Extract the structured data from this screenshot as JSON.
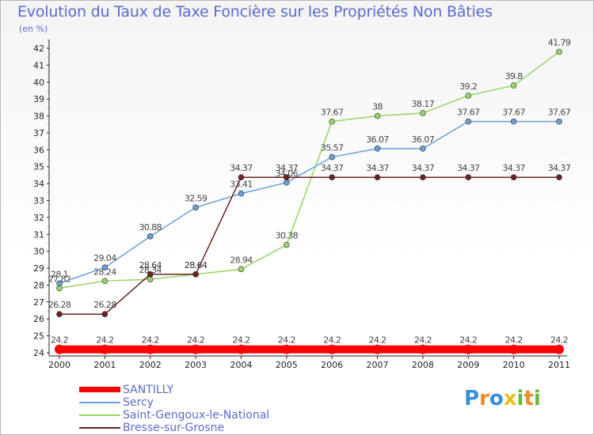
{
  "chart_data": {
    "type": "line",
    "title": "Evolution du Taux de Taxe Foncière sur les Propriétés Non Bâties",
    "unit_label": "(en %)",
    "x": [
      "2000",
      "2001",
      "2002",
      "2003",
      "2004",
      "2005",
      "2006",
      "2007",
      "2008",
      "2009",
      "2010",
      "2011"
    ],
    "ylim": [
      24,
      42
    ],
    "yticks": [
      "24",
      "25",
      "26",
      "27",
      "28",
      "29",
      "30",
      "31",
      "32",
      "33",
      "34",
      "35",
      "36",
      "37",
      "38",
      "39",
      "40",
      "41",
      "42"
    ],
    "grid": false,
    "legend_position": "bottom-left",
    "series": [
      {
        "name": "SANTILLY",
        "color": "#ff0000",
        "values": [
          24.2,
          24.2,
          24.2,
          24.2,
          24.2,
          24.2,
          24.2,
          24.2,
          24.2,
          24.2,
          24.2,
          24.2
        ],
        "labels": [
          "24.2",
          "24.2",
          "24.2",
          "24.2",
          "24.2",
          "24.2",
          "24.2",
          "24.2",
          "24.2",
          "24.2",
          "24.2",
          "24.2"
        ]
      },
      {
        "name": "Sercy",
        "color": "#6a9ed6",
        "values": [
          28.1,
          29.04,
          30.88,
          32.59,
          33.41,
          34.06,
          35.57,
          36.07,
          36.07,
          37.67,
          37.67,
          37.67
        ],
        "labels": [
          "28.1",
          "29.04",
          "30.88",
          "32.59",
          "33.41",
          "34.06",
          "35.57",
          "36.07",
          "36.07",
          "37.67",
          "37.67",
          "37.67"
        ]
      },
      {
        "name": "Saint-Gengoux-le-National",
        "color": "#98d466",
        "values": [
          27.82,
          28.24,
          28.34,
          28.64,
          28.94,
          30.38,
          37.67,
          38,
          38.17,
          39.2,
          39.8,
          41.79
        ],
        "labels": [
          "27.82",
          "28.24",
          "28.34",
          "28.64",
          "28.94",
          "30.38",
          "37.67",
          "38",
          "38.17",
          "39.2",
          "39.8",
          "41.79"
        ]
      },
      {
        "name": "Bresse-sur-Grosne",
        "color": "#6b2222",
        "values": [
          26.28,
          26.28,
          28.64,
          28.64,
          34.37,
          34.37,
          34.37,
          34.37,
          34.37,
          34.37,
          34.37,
          34.37
        ],
        "labels": [
          "26.28",
          "26.28",
          "28.64",
          "28.64",
          "34.37",
          "34.37",
          "34.37",
          "34.37",
          "34.37",
          "34.37",
          "34.37",
          "34.37"
        ]
      }
    ]
  },
  "legend": {
    "items": [
      {
        "label": "SANTILLY",
        "color": "#ff0000",
        "thickness": 7
      },
      {
        "label": "Sercy",
        "color": "#6a9ed6",
        "thickness": 2
      },
      {
        "label": "Saint-Gengoux-le-National",
        "color": "#98d466",
        "thickness": 2
      },
      {
        "label": "Bresse-sur-Grosne",
        "color": "#6b2222",
        "thickness": 2
      }
    ]
  },
  "logo": {
    "text": "Proxiti",
    "letters": [
      "P",
      "r",
      "o",
      "x",
      "i",
      "t",
      "i"
    ],
    "colors": [
      "#3a8fd8",
      "#f08a24",
      "#3a8fd8",
      "#e8c020",
      "#66b83a",
      "#f08a24",
      "#66b83a"
    ]
  }
}
